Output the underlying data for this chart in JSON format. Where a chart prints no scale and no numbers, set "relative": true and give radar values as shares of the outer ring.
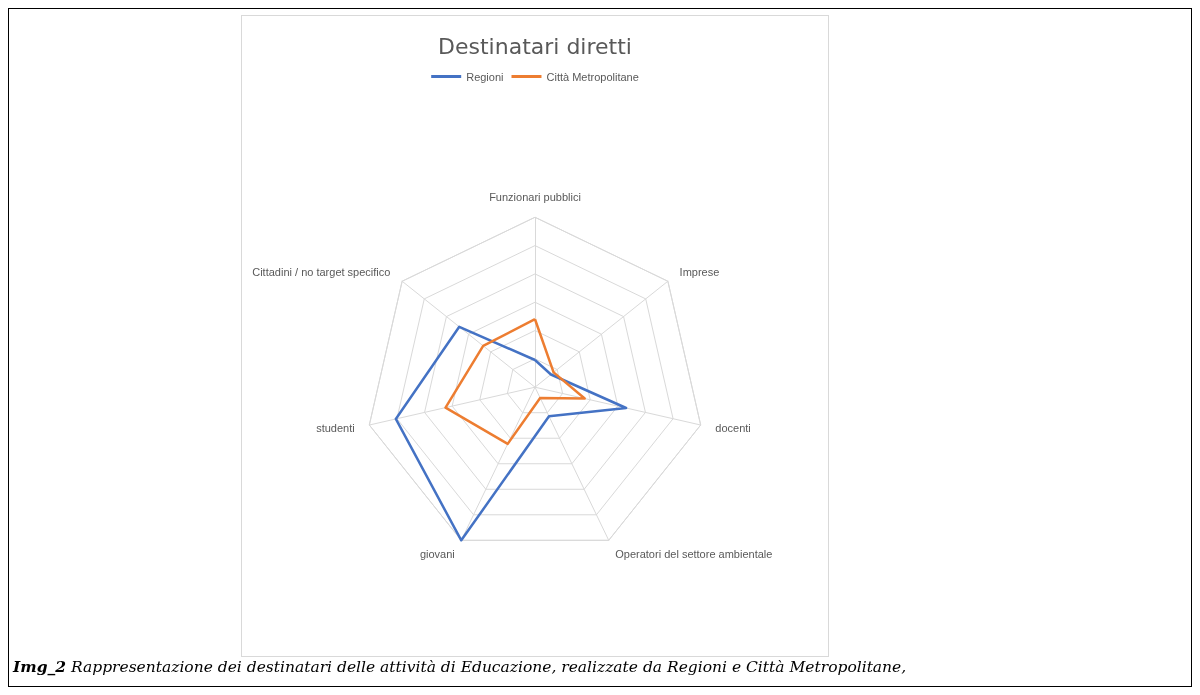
{
  "chart_data": {
    "type": "radar",
    "title": "Destinatari diretti",
    "relative": true,
    "grid": true,
    "legend": "top",
    "marker": "none",
    "line_style": "solid",
    "categories": [
      "Funzionari pubblici",
      "Imprese",
      "docenti",
      "Operatori del settore ambientale",
      "giovani",
      "studenti",
      "Cittadini / no target specifico"
    ],
    "series": [
      {
        "name": "Regioni",
        "color": "#4472c4",
        "values": [
          0.16,
          0.12,
          0.55,
          0.19,
          1.0,
          0.84,
          0.57
        ]
      },
      {
        "name": "Città Metropolitane",
        "color": "#ed7d31",
        "values": [
          0.4,
          0.14,
          0.3,
          0.07,
          0.37,
          0.54,
          0.39
        ]
      }
    ],
    "annotations": [
      "Img_2 Rappresentazione dei destinatari delle attività di Educazione, realizzate da Regioni e Città Metropolitane,"
    ]
  }
}
